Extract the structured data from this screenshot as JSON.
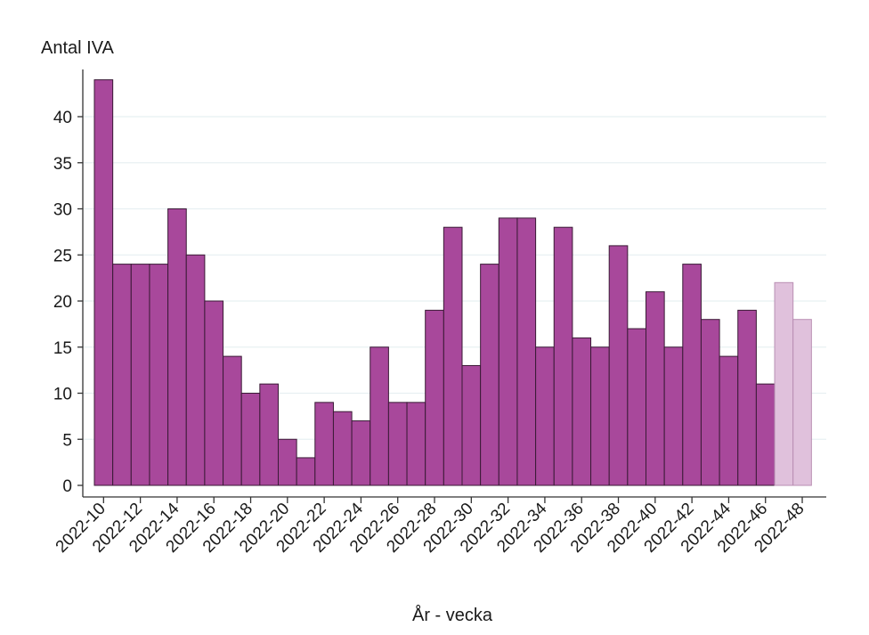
{
  "chart_data": {
    "type": "bar",
    "title": "",
    "ylabel": "Antal IVA",
    "xlabel": "År - vecka",
    "ylim": [
      0,
      45
    ],
    "y_ticks": [
      0,
      5,
      10,
      15,
      20,
      25,
      30,
      35,
      40
    ],
    "grid": "horizontal",
    "categories": [
      "2022-10",
      "2022-11",
      "2022-12",
      "2022-13",
      "2022-14",
      "2022-15",
      "2022-16",
      "2022-17",
      "2022-18",
      "2022-19",
      "2022-20",
      "2022-21",
      "2022-22",
      "2022-23",
      "2022-24",
      "2022-25",
      "2022-26",
      "2022-27",
      "2022-28",
      "2022-29",
      "2022-30",
      "2022-31",
      "2022-32",
      "2022-33",
      "2022-34",
      "2022-35",
      "2022-36",
      "2022-37",
      "2022-38",
      "2022-39",
      "2022-40",
      "2022-41",
      "2022-42",
      "2022-43",
      "2022-44",
      "2022-45",
      "2022-46",
      "2022-47",
      "2022-48"
    ],
    "values": [
      44,
      24,
      24,
      24,
      30,
      25,
      20,
      14,
      10,
      11,
      5,
      3,
      9,
      8,
      7,
      15,
      9,
      9,
      19,
      28,
      13,
      24,
      29,
      29,
      15,
      28,
      16,
      15,
      26,
      17,
      21,
      15,
      24,
      18,
      14,
      19,
      11,
      22,
      18
    ],
    "x_tick_labels": [
      "2022-10",
      "2022-12",
      "2022-14",
      "2022-16",
      "2022-18",
      "2022-20",
      "2022-22",
      "2022-24",
      "2022-26",
      "2022-28",
      "2022-30",
      "2022-32",
      "2022-34",
      "2022-36",
      "2022-38",
      "2022-40",
      "2022-42",
      "2022-44",
      "2022-46",
      "2022-48"
    ],
    "preliminary_from": "2022-47",
    "colors": {
      "bar": "#a8489b",
      "bar_edge": "#3a1a36",
      "bar_preliminary": "#e0c1dc",
      "bar_preliminary_edge": "#b98fb3",
      "grid": "#e8f0f2",
      "axis": "#333333"
    }
  }
}
